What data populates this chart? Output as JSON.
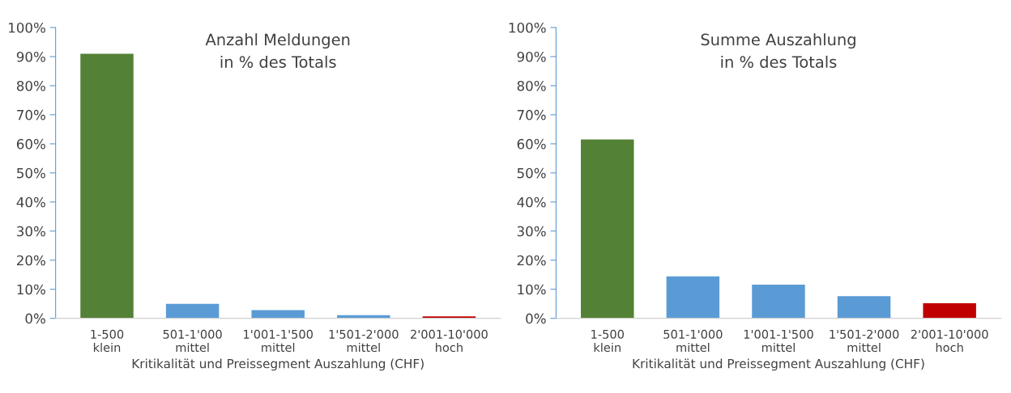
{
  "chart_data": [
    {
      "type": "bar",
      "title": "Anzahl Meldungen\nin % des Totals",
      "xlabel": "Kritikalität und Preissegment Auszahlung (CHF)",
      "categories": [
        "1-500\nklein",
        "501-1'000\nmittel",
        "1'001-1'500\nmittel",
        "1'501-2'000\nmittel",
        "2'001-10'000\nhoch"
      ],
      "values": [
        91,
        5.0,
        2.8,
        1.1,
        0.7
      ],
      "colors": [
        "#538135",
        "#5b9bd5",
        "#5b9bd5",
        "#5b9bd5",
        "#c00000"
      ],
      "ylim": [
        0,
        100
      ],
      "yticks": [
        {
          "value": 0,
          "label": "0%"
        },
        {
          "value": 10,
          "label": "10%"
        },
        {
          "value": 20,
          "label": "20%"
        },
        {
          "value": 30,
          "label": "30%"
        },
        {
          "value": 40,
          "label": "40%"
        },
        {
          "value": 50,
          "label": "50%"
        },
        {
          "value": 60,
          "label": "60%"
        },
        {
          "value": 70,
          "label": "70%"
        },
        {
          "value": 80,
          "label": "80%"
        },
        {
          "value": 90,
          "label": "90%"
        },
        {
          "value": 100,
          "label": "100%"
        }
      ],
      "grid": false,
      "legend": false
    },
    {
      "type": "bar",
      "title": "Summe Auszahlung\nin % des Totals",
      "xlabel": "Kritikalität und Preissegment Auszahlung (CHF)",
      "categories": [
        "1-500\nklein",
        "501-1'000\nmittel",
        "1'001-1'500\nmittel",
        "1'501-2'000\nmittel",
        "2'001-10'000\nhoch"
      ],
      "values": [
        61.5,
        14.4,
        11.6,
        7.6,
        5.2
      ],
      "colors": [
        "#538135",
        "#5b9bd5",
        "#5b9bd5",
        "#5b9bd5",
        "#c00000"
      ],
      "ylim": [
        0,
        100
      ],
      "yticks": [
        {
          "value": 0,
          "label": "0%"
        },
        {
          "value": 10,
          "label": "10%"
        },
        {
          "value": 20,
          "label": "20%"
        },
        {
          "value": 30,
          "label": "30%"
        },
        {
          "value": 40,
          "label": "40%"
        },
        {
          "value": 50,
          "label": "50%"
        },
        {
          "value": 60,
          "label": "60%"
        },
        {
          "value": 70,
          "label": "70%"
        },
        {
          "value": 80,
          "label": "80%"
        },
        {
          "value": 90,
          "label": "90%"
        },
        {
          "value": 100,
          "label": "100%"
        }
      ],
      "grid": false,
      "legend": false
    }
  ]
}
